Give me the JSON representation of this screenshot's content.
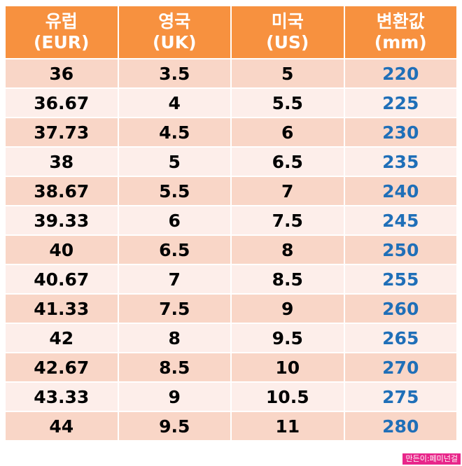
{
  "colors": {
    "header_bg": "#f7913f",
    "row_dark": "#f9d6c7",
    "row_light": "#fdeeea",
    "mm_text": "#1f6fb8",
    "credit_bg": "#e8268a"
  },
  "headers": [
    {
      "name": "유럽",
      "unit": "(EUR)"
    },
    {
      "name": "영국",
      "unit": "(UK)"
    },
    {
      "name": "미국",
      "unit": "(US)"
    },
    {
      "name": "변환값",
      "unit": "(mm)"
    }
  ],
  "rows": [
    [
      "36",
      "3.5",
      "5",
      "220"
    ],
    [
      "36.67",
      "4",
      "5.5",
      "225"
    ],
    [
      "37.73",
      "4.5",
      "6",
      "230"
    ],
    [
      "38",
      "5",
      "6.5",
      "235"
    ],
    [
      "38.67",
      "5.5",
      "7",
      "240"
    ],
    [
      "39.33",
      "6",
      "7.5",
      "245"
    ],
    [
      "40",
      "6.5",
      "8",
      "250"
    ],
    [
      "40.67",
      "7",
      "8.5",
      "255"
    ],
    [
      "41.33",
      "7.5",
      "9",
      "260"
    ],
    [
      "42",
      "8",
      "9.5",
      "265"
    ],
    [
      "42.67",
      "8.5",
      "10",
      "270"
    ],
    [
      "43.33",
      "9",
      "10.5",
      "275"
    ],
    [
      "44",
      "9.5",
      "11",
      "280"
    ]
  ],
  "credit": "만든이:페미넌걸"
}
